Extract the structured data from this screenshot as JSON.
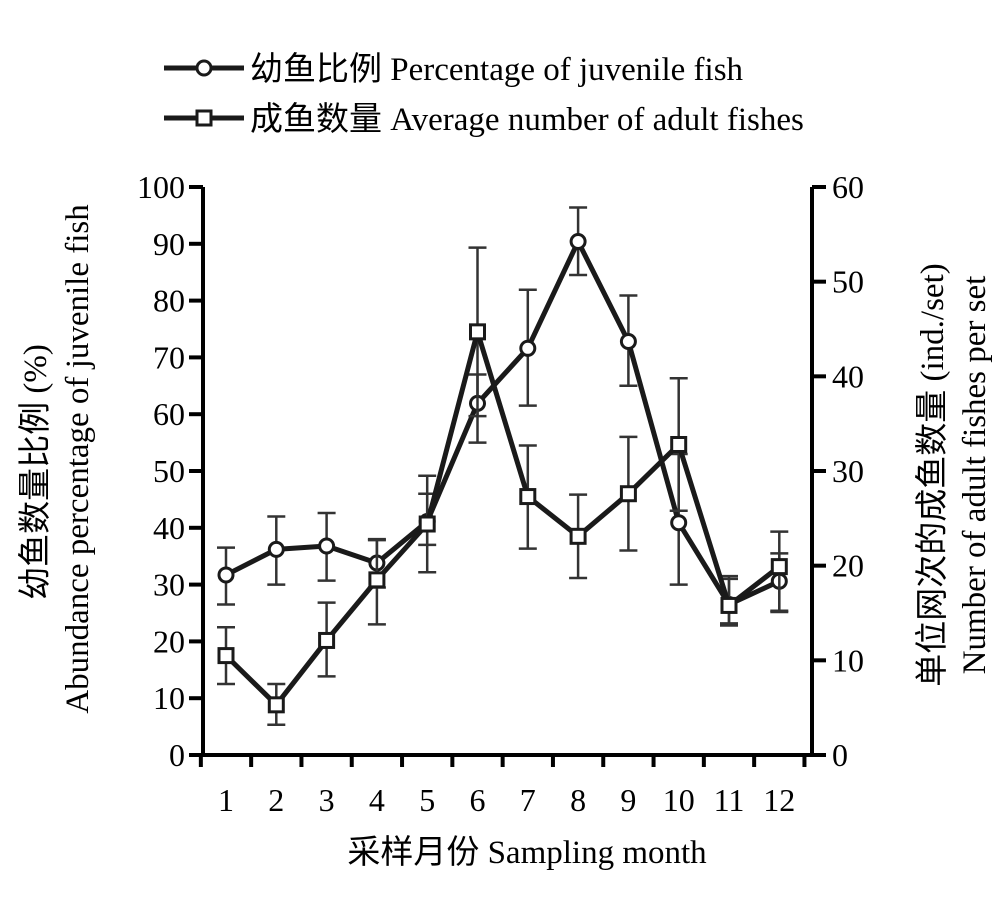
{
  "chart_data": {
    "type": "line",
    "x": [
      1,
      2,
      3,
      4,
      5,
      6,
      7,
      8,
      9,
      10,
      11,
      12
    ],
    "x_tick_labels": [
      "1",
      "2",
      "3",
      "4",
      "5",
      "6",
      "7",
      "8",
      "9",
      "10",
      "11",
      "12"
    ],
    "xlabel": "采样月份 Sampling month",
    "ylabel_left_cn": "幼鱼数量比例 (%)",
    "ylabel_left_en": "Abundance percentage of juvenile fish",
    "ylabel_right_cn": "单位网次的成鱼数量 (ind./set)",
    "ylabel_right_en": "Number of adult fishes per set",
    "ylim_left": [
      0,
      100
    ],
    "yticks_left": [
      0,
      10,
      20,
      30,
      40,
      50,
      60,
      70,
      80,
      90,
      100
    ],
    "ylim_right": [
      0,
      60
    ],
    "yticks_right": [
      0,
      10,
      20,
      30,
      40,
      50,
      60
    ],
    "legend_placement": "top",
    "series": [
      {
        "name": "幼鱼比例 Percentage of juvenile fish",
        "axis": "left",
        "marker": "circle",
        "values": [
          31.7,
          36.2,
          36.8,
          33.8,
          41.1,
          61.9,
          71.6,
          90.4,
          72.8,
          40.9,
          26.5,
          30.6
        ],
        "err_upper": [
          36.5,
          42.0,
          42.6,
          38.0,
          46.0,
          67.0,
          81.9,
          96.4,
          80.9,
          53.0,
          31.5,
          35.5
        ],
        "err_lower": [
          26.5,
          30.0,
          30.7,
          29.5,
          37.0,
          55.0,
          61.5,
          84.5,
          65.0,
          30.0,
          22.8,
          25.4
        ]
      },
      {
        "name": "成鱼数量 Average number of adult fishes",
        "axis": "right",
        "marker": "square",
        "values": [
          10.5,
          5.3,
          12.1,
          18.5,
          24.4,
          44.7,
          27.3,
          23.1,
          27.6,
          32.8,
          15.8,
          19.9
        ],
        "err_upper": [
          13.5,
          7.5,
          16.1,
          22.7,
          29.5,
          53.6,
          32.7,
          27.5,
          33.6,
          39.8,
          18.6,
          23.6
        ],
        "err_lower": [
          7.5,
          3.2,
          8.3,
          13.8,
          19.3,
          35.8,
          21.8,
          18.7,
          21.6,
          25.8,
          13.9,
          15.1
        ]
      }
    ]
  }
}
